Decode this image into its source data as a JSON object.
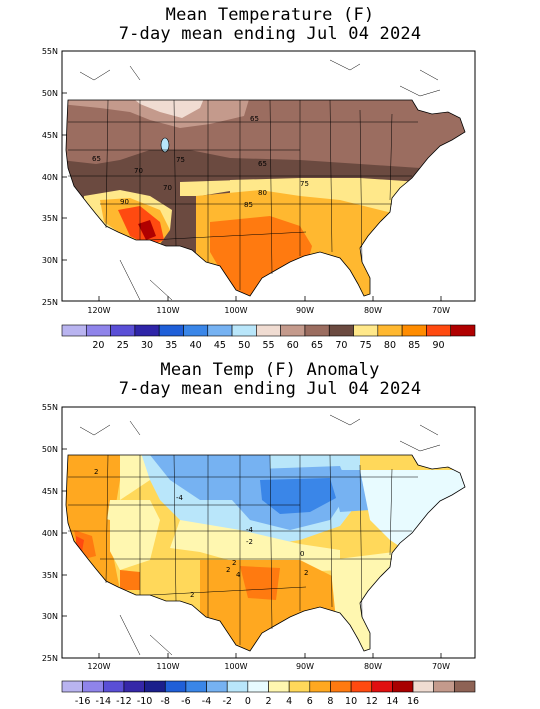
{
  "panel1": {
    "title_line1": "Mean Temperature (F)",
    "title_line2": "7-day mean ending Jul 04 2024",
    "lat_ticks": [
      "55N",
      "50N",
      "45N",
      "40N",
      "35N",
      "30N",
      "25N"
    ],
    "lon_ticks": [
      "120W",
      "110W",
      "100W",
      "90W",
      "80W",
      "70W"
    ],
    "contour_labels": [
      "65",
      "65",
      "70",
      "75",
      "65",
      "70",
      "80",
      "75",
      "90",
      "85"
    ],
    "legend": {
      "labels": [
        "20",
        "25",
        "30",
        "35",
        "40",
        "45",
        "50",
        "55",
        "60",
        "65",
        "70",
        "75",
        "80",
        "85",
        "90"
      ],
      "colors": [
        "#b9b4f0",
        "#8f84ea",
        "#5a4fd6",
        "#2f25a8",
        "#1f5fd8",
        "#3a86e8",
        "#76b2f2",
        "#b9e6fa",
        "#f0dcd2",
        "#c49a8c",
        "#9b6d60",
        "#6b4a40",
        "#ffe88a",
        "#ffb830",
        "#ff8c00",
        "#ff4a10",
        "#b00000"
      ]
    }
  },
  "panel2": {
    "title_line1": "Mean Temp (F) Anomaly",
    "title_line2": "7-day mean ending Jul 04 2024",
    "lat_ticks": [
      "55N",
      "50N",
      "45N",
      "40N",
      "35N",
      "30N",
      "25N"
    ],
    "lon_ticks": [
      "120W",
      "110W",
      "100W",
      "90W",
      "80W",
      "70W"
    ],
    "contour_labels": [
      "2",
      "-4",
      "-4",
      "-2",
      "0",
      "2",
      "4",
      "2",
      "2",
      "2"
    ],
    "legend": {
      "labels": [
        "-16",
        "-14",
        "-12",
        "-10",
        "-8",
        "-6",
        "-4",
        "-2",
        "0",
        "2",
        "4",
        "6",
        "8",
        "10",
        "12",
        "14",
        "16"
      ],
      "colors": [
        "#b9b4f0",
        "#8f84ea",
        "#5a4fd6",
        "#3527a8",
        "#1b1f8c",
        "#1f5fd8",
        "#3a86e8",
        "#76b2f2",
        "#b9e6fa",
        "#e8fbff",
        "#fff7b0",
        "#ffd85a",
        "#ffa820",
        "#ff7a10",
        "#ff4a10",
        "#e01010",
        "#a80000",
        "#f0dcd2",
        "#c49a8c",
        "#8e6355"
      ]
    }
  }
}
